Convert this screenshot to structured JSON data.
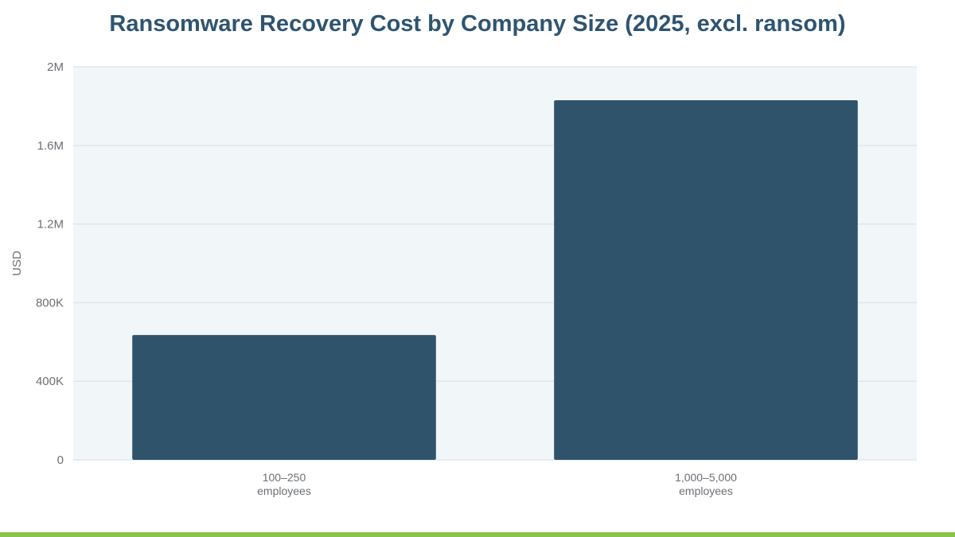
{
  "chart_data": {
    "type": "bar",
    "title": "Ransomware Recovery Cost by Company Size (2025, excl. ransom)",
    "xlabel": "",
    "ylabel": "USD",
    "categories": [
      [
        "100–250",
        "employees"
      ],
      [
        "1,000–5,000",
        "employees"
      ]
    ],
    "values": [
      635000,
      1830000
    ],
    "ylim": [
      0,
      2000000
    ],
    "yticks": [
      {
        "value": 0,
        "label": "0"
      },
      {
        "value": 400000,
        "label": "400K"
      },
      {
        "value": 800000,
        "label": "800K"
      },
      {
        "value": 1200000,
        "label": "1.2M"
      },
      {
        "value": 1600000,
        "label": "1.6M"
      },
      {
        "value": 2000000,
        "label": "2M"
      }
    ],
    "grid": true,
    "legend": "none"
  },
  "colors": {
    "bar": "#30536c",
    "plot_background": "#f1f6f9",
    "grid": "#dfe7ec",
    "title": "#2e5470",
    "accent_bar": "#8bc34a"
  }
}
